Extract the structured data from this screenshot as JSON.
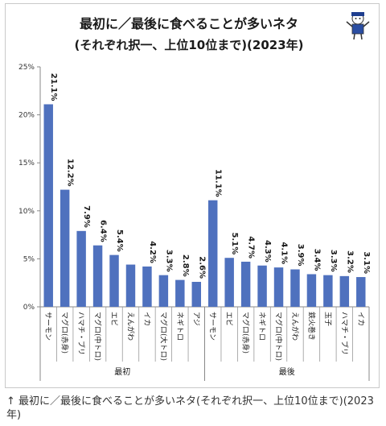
{
  "chart_data": {
    "type": "bar",
    "title_lines": [
      "最初に／最後に食べることが多いネタ",
      "(それぞれ択一、上位10位まで)(2023年)"
    ],
    "xlabel": "",
    "ylabel": "",
    "ylim": [
      0,
      25
    ],
    "y_ticks": [
      "0%",
      "5%",
      "10%",
      "15%",
      "20%",
      "25%"
    ],
    "grid": false,
    "color": "#4f71be",
    "groups": [
      {
        "name": "最初",
        "categories": [
          "サーモン",
          "マグロ(赤身)",
          "ハマチ・ブリ",
          "マグロ(中トロ)",
          "エビ",
          "えんがわ",
          "イカ",
          "マグロ(大トロ)",
          "ネギトロ",
          "アジ"
        ],
        "values": [
          21.1,
          12.2,
          7.9,
          6.4,
          5.4,
          4.4,
          4.2,
          3.3,
          2.8,
          2.6
        ],
        "labels": [
          "21.1%",
          "12.2%",
          "7.9%",
          "6.4%",
          "5.4%",
          "",
          "4.2%",
          "3.3%",
          "2.8%",
          "2.6%"
        ]
      },
      {
        "name": "最後",
        "categories": [
          "サーモン",
          "エビ",
          "マグロ(赤身)",
          "ネギトロ",
          "マグロ(中トロ)",
          "えんがわ",
          "鉄火巻き",
          "玉子",
          "ハマチ・ブリ",
          "イカ"
        ],
        "values": [
          11.1,
          5.1,
          4.7,
          4.3,
          4.1,
          3.9,
          3.4,
          3.3,
          3.2,
          3.1
        ],
        "labels": [
          "11.1%",
          "5.1%",
          "4.7%",
          "4.3%",
          "4.1%",
          "3.9%",
          "3.4%",
          "3.3%",
          "3.2%",
          "3.1%"
        ]
      }
    ]
  },
  "caption": "↑ 最初に／最後に食べることが多いネタ(それぞれ択一、上位10位まで)(2023年)"
}
